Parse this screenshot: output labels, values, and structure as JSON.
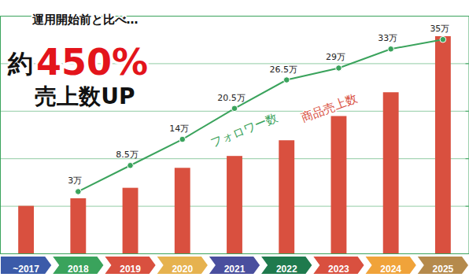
{
  "chart_data": {
    "type": "bar",
    "annotations": [
      "運用開始前と比べ…",
      "約",
      "450%",
      "売上数UP"
    ],
    "categories": [
      "~2017",
      "2018",
      "2019",
      "2020",
      "2021",
      "2022",
      "2023",
      "2024",
      "2025"
    ],
    "series": [
      {
        "name": "商品売上数",
        "type": "bar",
        "color": "#d9503f",
        "values": [
          100,
          116,
          138,
          180,
          205,
          238,
          289,
          339,
          457
        ]
      },
      {
        "name": "フォロワー数",
        "type": "line",
        "axis": "y2",
        "color": "#3aa35c",
        "marker": "circle",
        "data_labels": true,
        "values": [
          null,
          3,
          8.5,
          14,
          20.5,
          26.5,
          29,
          33,
          35
        ],
        "value_labels": [
          null,
          "3万",
          "8.5万",
          "14万",
          "20.5万",
          "26.5万",
          "29万",
          "33万",
          "35万"
        ]
      }
    ],
    "ylim": [
      0,
      500
    ],
    "yticks": [
      0,
      100,
      200,
      300,
      400,
      500
    ],
    "y2lim": [
      -10,
      40
    ],
    "y2ticks": [
      -10,
      0,
      10,
      20,
      30,
      40
    ],
    "grid": true,
    "tick_labels": "x"
  }
}
